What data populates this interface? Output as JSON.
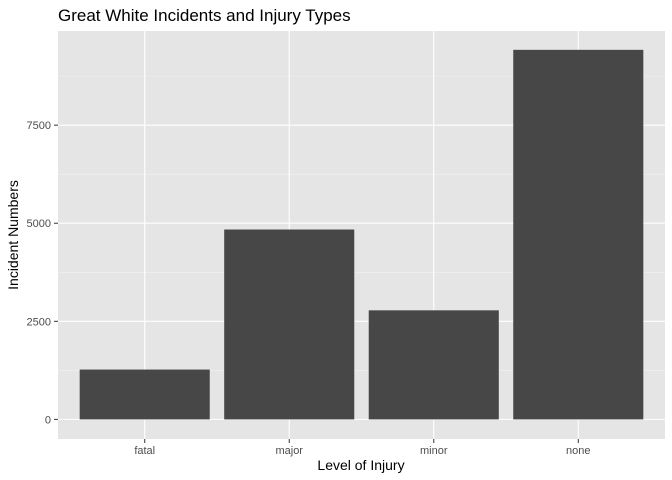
{
  "chart_data": {
    "type": "bar",
    "title": "Great White Incidents and Injury Types",
    "xlabel": "Level of Injury",
    "ylabel": "Incident Numbers",
    "categories": [
      "fatal",
      "major",
      "minor",
      "none"
    ],
    "values": [
      1270,
      4840,
      2780,
      9420
    ],
    "ylim": [
      -500,
      9900
    ],
    "yticks": [
      0,
      2500,
      5000,
      7500
    ],
    "ytick_labels": [
      "0",
      "2500",
      "5000",
      "7500"
    ],
    "grid": true,
    "legend": "none",
    "colors": {
      "bar": "#474747",
      "panel": "#e5e5e5",
      "grid_major": "#ffffff",
      "grid_minor": "#f2f2f2",
      "tick_text": "#4d4d4d"
    }
  }
}
